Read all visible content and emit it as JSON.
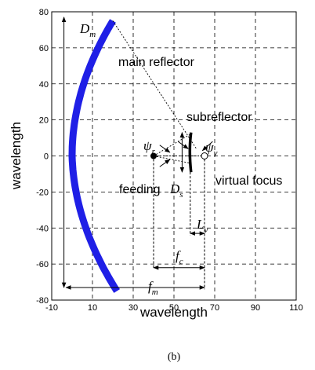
{
  "chart_data": {
    "type": "diagram",
    "xlim": [
      -10,
      110
    ],
    "ylim": [
      -80,
      80
    ],
    "xticks": [
      "-10",
      "10",
      "30",
      "50",
      "70",
      "90",
      "110"
    ],
    "yticks": [
      "80",
      "60",
      "40",
      "20",
      "0",
      "-20",
      "-40",
      "-60",
      "-80"
    ],
    "xlabel": "wavelength",
    "ylabel": "wavelength",
    "grid": true,
    "main_reflector_color": "#1f1fe6",
    "feed_point": [
      40,
      0
    ],
    "virtual_focus": [
      65,
      0
    ],
    "subreflector_x": 58
  },
  "labels": {
    "dm": "D",
    "dm_sub": "m",
    "main_reflector": "main reflector",
    "subreflector": "subreflector",
    "psi_r": "ψ",
    "psi_r_sub": "r",
    "psi_v": "ψ",
    "psi_v_sub": "v",
    "feeding": "feeding",
    "ds": "D",
    "ds_sub": "s",
    "virtual_focus": "virtual focus",
    "lv": "L",
    "lv_sub": "v",
    "fc": "f",
    "fc_sub": "c",
    "fm": "f",
    "fm_sub": "m",
    "caption": "(b)"
  }
}
